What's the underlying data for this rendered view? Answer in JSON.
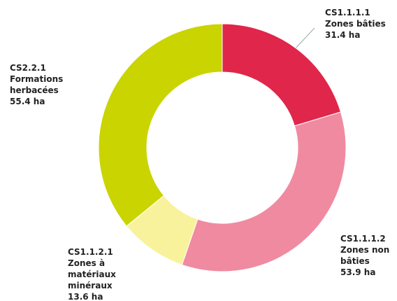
{
  "chart_data": {
    "type": "donut",
    "categories": [
      "CS1.1.1.1",
      "CS1.1.1.2",
      "CS1.1.2.1",
      "CS2.2.1"
    ],
    "names": [
      [
        "Zones bâties"
      ],
      [
        "Zones non",
        "bâties"
      ],
      [
        "Zones à",
        "matériaux",
        "minéraux"
      ],
      [
        "Formations",
        "herbacées"
      ]
    ],
    "values": [
      31.4,
      53.9,
      13.6,
      55.4
    ],
    "value_labels": [
      "31.4 ha",
      "53.9 ha",
      "13.6 ha",
      "55.4 ha"
    ],
    "colors": [
      "#e0264a",
      "#f08aa0",
      "#f8f29c",
      "#c9d400"
    ]
  }
}
